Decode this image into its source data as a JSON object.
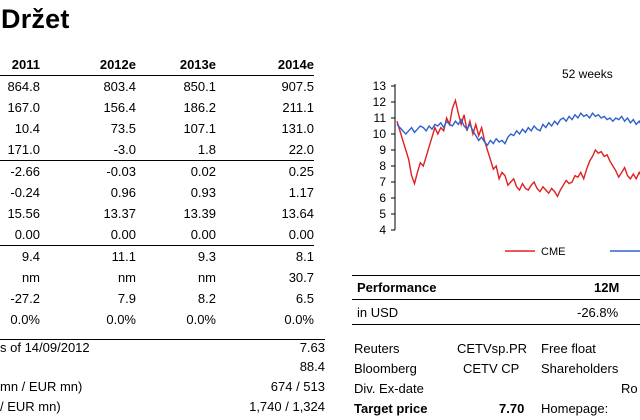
{
  "title": "Držet",
  "table": {
    "headers": [
      "2011",
      "2012e",
      "2013e",
      "2014e"
    ],
    "rows": [
      [
        "864.8",
        "803.4",
        "850.1",
        "907.5"
      ],
      [
        "167.0",
        "156.4",
        "186.2",
        "211.1"
      ],
      [
        "10.4",
        "73.5",
        "107.1",
        "131.0"
      ],
      [
        "171.0",
        "-3.0",
        "1.8",
        "22.0"
      ],
      [
        "-2.66",
        "-0.03",
        "0.02",
        "0.25"
      ],
      [
        "-0.24",
        "0.96",
        "0.93",
        "1.17"
      ],
      [
        "15.56",
        "13.37",
        "13.39",
        "13.64"
      ],
      [
        "0.00",
        "0.00",
        "0.00",
        "0.00"
      ],
      [
        "9.4",
        "11.1",
        "9.3",
        "8.1"
      ],
      [
        "nm",
        "nm",
        "nm",
        "30.7"
      ],
      [
        "-27.2",
        "7.9",
        "8.2",
        "6.5"
      ],
      [
        "0.0%",
        "0.0%",
        "0.0%",
        "0.0%"
      ]
    ]
  },
  "bottom": [
    {
      "label": "s of 14/09/2012",
      "value": "7.63"
    },
    {
      "label": "",
      "value": "88.4"
    },
    {
      "label": "mn / EUR mn)",
      "value": "674 / 513"
    },
    {
      "label": "/ EUR mn)",
      "value": "1,740 / 1,324"
    }
  ],
  "chart_data": {
    "type": "line",
    "title": "52 weeks",
    "ylim": [
      4,
      13
    ],
    "yticks": [
      "13",
      "12",
      "11",
      "10",
      "9",
      "8",
      "7",
      "6",
      "5",
      "4"
    ],
    "series": [
      {
        "name": "CME",
        "color": "#e02020",
        "values": [
          10.8,
          10.2,
          9.6,
          9.0,
          8.4,
          7.4,
          6.9,
          7.6,
          8.2,
          8.0,
          8.6,
          9.2,
          9.8,
          10.4,
          10.0,
          10.4,
          10.2,
          11.0,
          10.6,
          11.6,
          12.1,
          11.3,
          10.6,
          11.2,
          10.2,
          10.8,
          10.0,
          10.6,
          9.9,
          10.4,
          9.6,
          9.0,
          8.4,
          7.8,
          8.0,
          7.2,
          7.6,
          7.4,
          6.8,
          7.0,
          7.2,
          6.7,
          6.5,
          6.9,
          6.6,
          6.5,
          6.8,
          7.0,
          6.6,
          6.4,
          6.7,
          6.5,
          6.3,
          6.6,
          6.4,
          6.1,
          6.5,
          6.8,
          7.1,
          6.9,
          7.0,
          7.4,
          7.3,
          7.6,
          7.2,
          7.8,
          8.3,
          8.6,
          9.0,
          8.8,
          8.9,
          8.6,
          8.7,
          8.3,
          8.0,
          7.7,
          7.3,
          7.6,
          7.9,
          7.4,
          7.2,
          7.5,
          7.2,
          7.6,
          7.3,
          7.8
        ]
      },
      {
        "name": "",
        "color": "#3060d0",
        "values": [
          10.6,
          10.4,
          10.2,
          10.0,
          10.2,
          10.4,
          10.1,
          10.3,
          10.5,
          10.4,
          10.2,
          10.5,
          10.3,
          10.6,
          10.5,
          10.7,
          10.4,
          10.8,
          10.6,
          10.5,
          10.8,
          10.6,
          10.9,
          10.5,
          10.3,
          10.6,
          10.2,
          9.9,
          9.6,
          9.8,
          9.5,
          9.3,
          9.6,
          9.4,
          9.7,
          9.5,
          9.6,
          9.4,
          9.8,
          10.0,
          9.9,
          10.2,
          10.0,
          10.3,
          10.1,
          10.4,
          10.2,
          10.5,
          10.3,
          10.2,
          10.6,
          10.4,
          10.7,
          10.5,
          10.8,
          10.6,
          10.9,
          11.0,
          10.8,
          11.1,
          10.9,
          11.2,
          11.0,
          11.3,
          11.1,
          11.2,
          11.0,
          11.3,
          11.1,
          11.2,
          11.0,
          11.1,
          10.9,
          11.0,
          10.8,
          11.0,
          10.9,
          11.1,
          10.8,
          11.0,
          10.7,
          10.9,
          10.6,
          10.8,
          10.5,
          10.4
        ]
      }
    ]
  },
  "performance": {
    "label": "Performance",
    "period": "12M",
    "row_label": "in USD",
    "row_value": "-26.8%"
  },
  "info": [
    {
      "k": "Reuters",
      "v": "CETVsp.PR",
      "k2": "Free float"
    },
    {
      "k": "Bloomberg",
      "v": "CETV CP",
      "k2": "Shareholders"
    },
    {
      "k": "Div. Ex-date",
      "v": "",
      "k2": "Ro"
    },
    {
      "k": "Target price",
      "v": "7.70",
      "k2": "Homepage:"
    }
  ]
}
